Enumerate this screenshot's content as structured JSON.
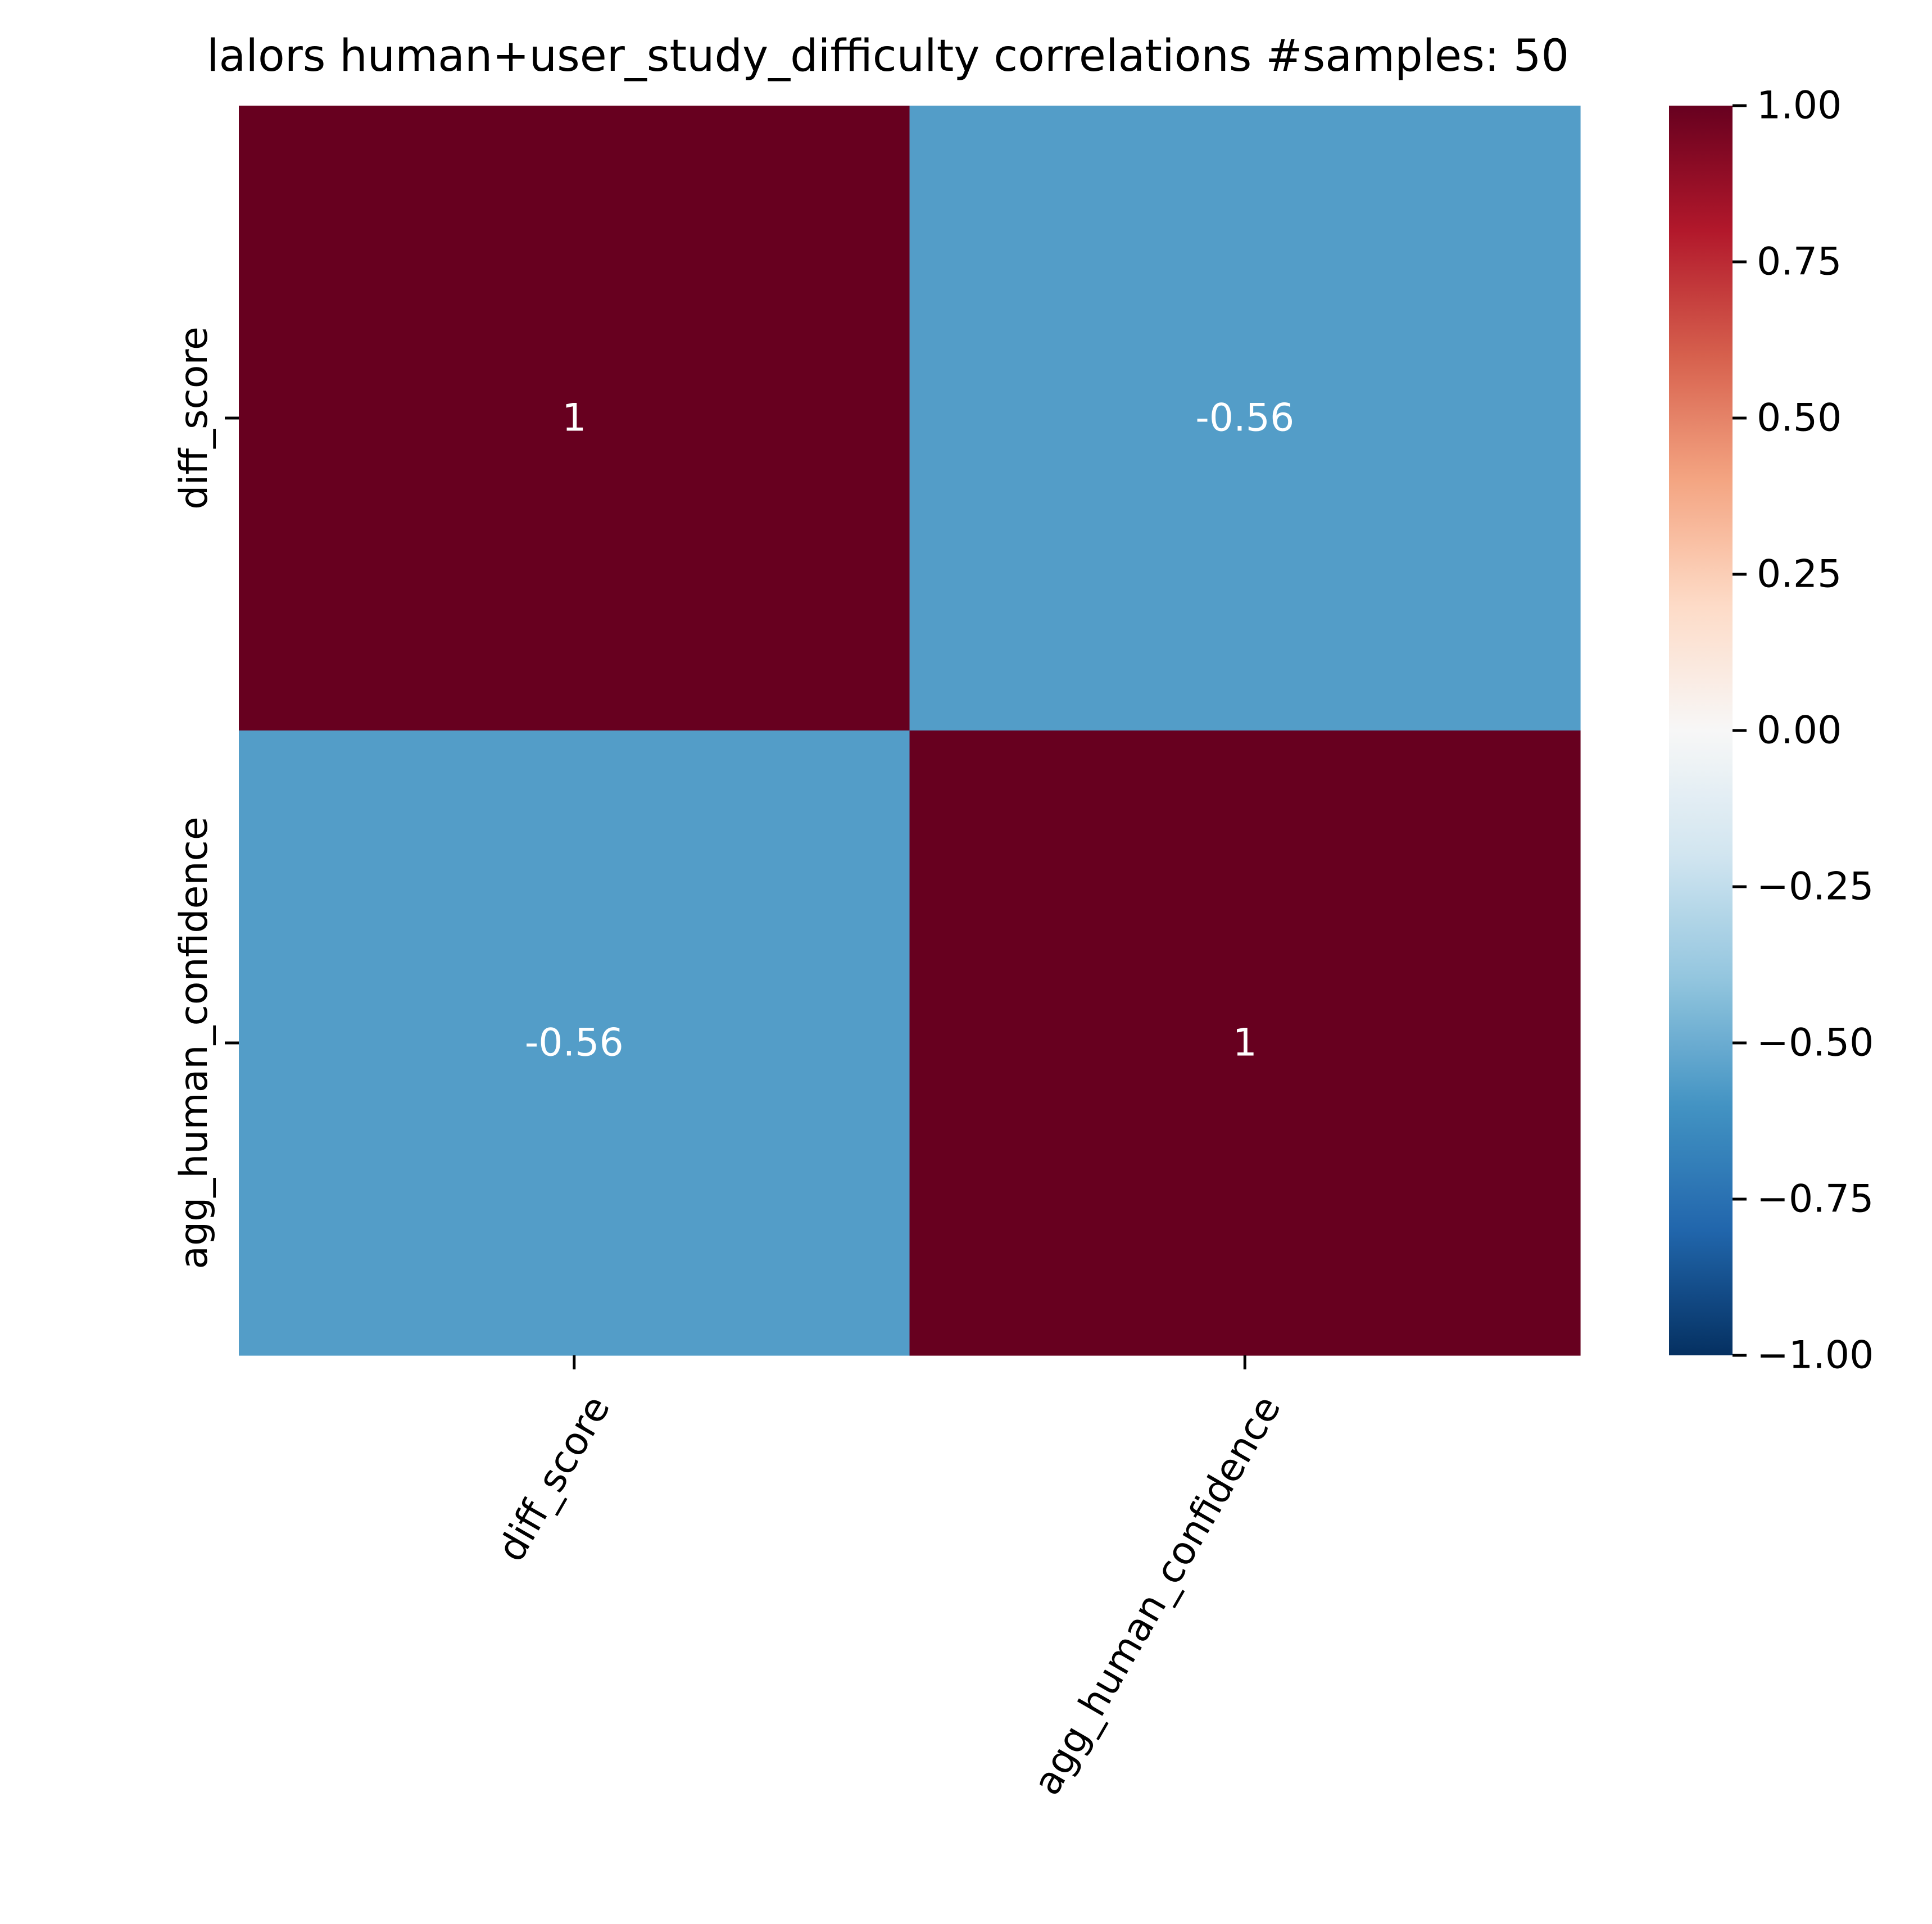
{
  "chart_data": {
    "type": "heatmap",
    "title": "lalors human+user_study_difficulty correlations #samples: 50",
    "row_labels": [
      "diff_score",
      "agg_human_confidence"
    ],
    "col_labels": [
      "diff_score",
      "agg_human_confidence"
    ],
    "values": [
      [
        1.0,
        -0.56
      ],
      [
        -0.56,
        1.0
      ]
    ],
    "annotations": [
      [
        "1",
        "-0.56"
      ],
      [
        "-0.56",
        "1"
      ]
    ],
    "colormap": "RdBu_r",
    "vmin": -1.0,
    "vmax": 1.0,
    "colorbar_ticks": [
      1.0,
      0.75,
      0.5,
      0.25,
      0.0,
      -0.25,
      -0.5,
      -0.75,
      -1.0
    ],
    "colorbar_tick_labels": [
      "1.00",
      "0.75",
      "0.50",
      "0.25",
      "0.00",
      "−0.25",
      "−0.50",
      "−0.75",
      "−1.00"
    ],
    "x_tick_rotation": 60,
    "annotation_color": "#ffffff"
  }
}
